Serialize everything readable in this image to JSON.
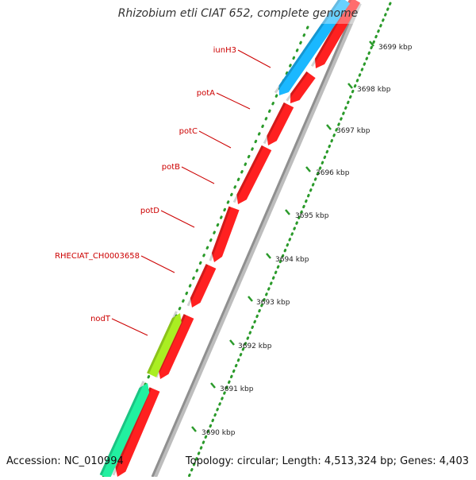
{
  "title": "Rhizobium etli CIAT 652, complete genome",
  "footer": {
    "accession": "Accession: NC_010994",
    "topology": "Topology: circular; Length: 4,513,324 bp; Genes: 4,403"
  },
  "colors": {
    "background": "#ffffff",
    "backbone": "#8f8f8f",
    "forward_gene": "#ff2020",
    "iunH3_gene": "#1ab8ff",
    "nodT_gene": "#aaee22",
    "teal_gene": "#22f0a0",
    "label": "#cc0000",
    "dotted_track": "#2a9a2a"
  },
  "genes": [
    {
      "name": "iunH3",
      "label": "iunH3",
      "strand": "reverse",
      "color": "iunH3_gene"
    },
    {
      "name": "potA",
      "label": "potA",
      "strand": "forward",
      "color": "forward_gene"
    },
    {
      "name": "potC",
      "label": "potC",
      "strand": "forward",
      "color": "forward_gene"
    },
    {
      "name": "potB",
      "label": "potB",
      "strand": "forward",
      "color": "forward_gene"
    },
    {
      "name": "potD",
      "label": "potD",
      "strand": "forward",
      "color": "forward_gene"
    },
    {
      "name": "RHECIAT_CH0003658",
      "label": "RHECIAT_CH0003658",
      "strand": "forward",
      "color": "forward_gene"
    },
    {
      "name": "nodT",
      "label": "nodT",
      "strand": "reverse",
      "color": "nodT_gene"
    }
  ],
  "ticks": [
    {
      "label": "3690 kbp",
      "kbp": 3690
    },
    {
      "label": "3691 kbp",
      "kbp": 3691
    },
    {
      "label": "3692 kbp",
      "kbp": 3692
    },
    {
      "label": "3693 kbp",
      "kbp": 3693
    },
    {
      "label": "3694 kbp",
      "kbp": 3694
    },
    {
      "label": "3695 kbp",
      "kbp": 3695
    },
    {
      "label": "3696 kbp",
      "kbp": 3696
    },
    {
      "label": "3697 kbp",
      "kbp": 3697
    },
    {
      "label": "3698 kbp",
      "kbp": 3698
    },
    {
      "label": "3699 kbp",
      "kbp": 3699
    }
  ]
}
